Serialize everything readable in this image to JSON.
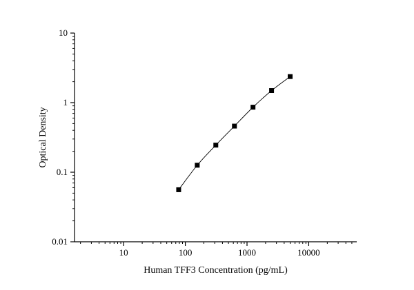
{
  "chart_data": {
    "type": "scatter",
    "xlabel": "Human TFF3 Concentration (pg/mL)",
    "ylabel": "Optical Density",
    "xscale": "log",
    "yscale": "log",
    "xlim": [
      1.6,
      60000
    ],
    "ylim": [
      0.01,
      10
    ],
    "x_ticks": [
      10,
      100,
      1000,
      10000
    ],
    "x_tick_labels": [
      "10",
      "100",
      "1000",
      "10000"
    ],
    "y_ticks": [
      0.01,
      0.1,
      1,
      10
    ],
    "y_tick_labels": [
      "0.01",
      "0.1",
      "1",
      "10"
    ],
    "grid": false,
    "marker": "square",
    "fit_line": true,
    "x": [
      78,
      156,
      312,
      625,
      1250,
      2500,
      5000
    ],
    "y": [
      0.056,
      0.126,
      0.245,
      0.46,
      0.86,
      1.49,
      2.37
    ],
    "colors": {
      "marker": "#000000",
      "line": "#000000",
      "axis": "#000000"
    }
  }
}
